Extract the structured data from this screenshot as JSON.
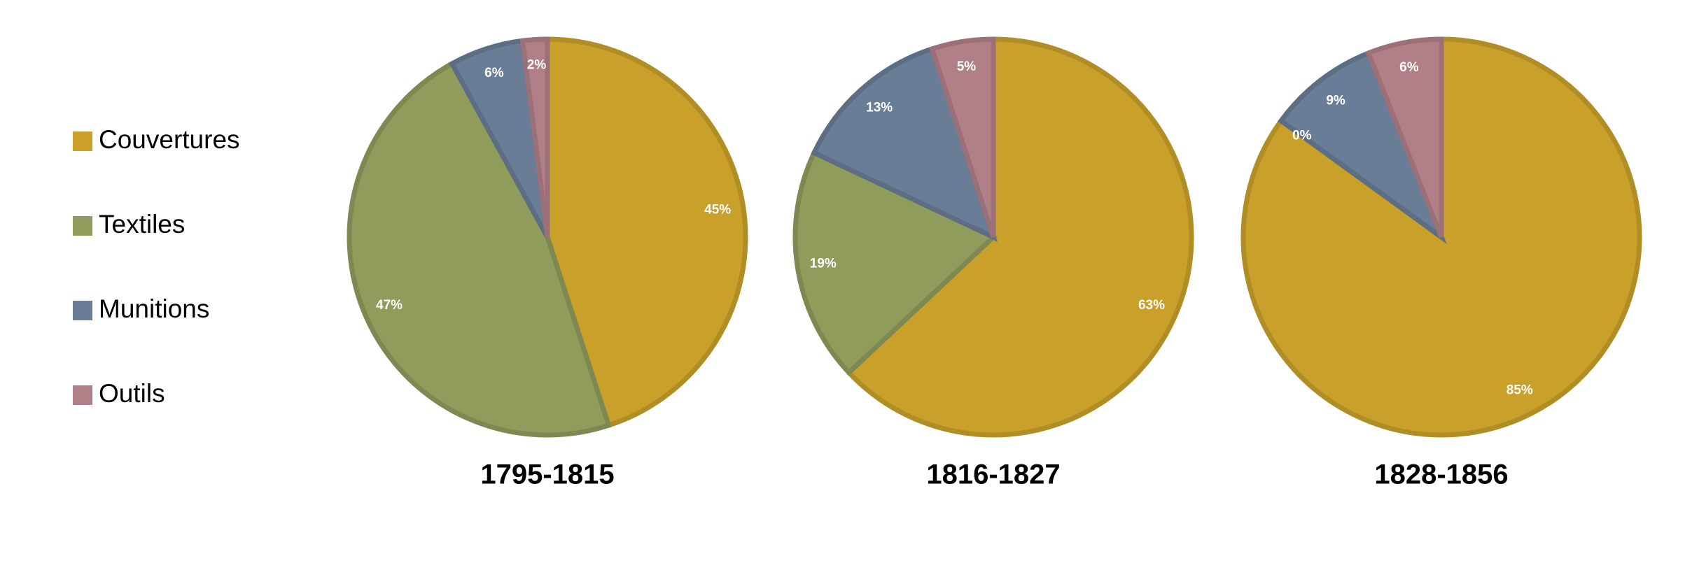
{
  "chart_data": [
    {
      "type": "pie",
      "title": "1795-1815",
      "categories": [
        "Couvertures",
        "Textiles",
        "Munitions",
        "Outils"
      ],
      "values": [
        45,
        47,
        6,
        2
      ],
      "value_labels": [
        "45%",
        "47%",
        "6%",
        "2%"
      ],
      "colors": [
        "#c8a02a",
        "#8f9c5c",
        "#6a7d96",
        "#b07f88"
      ]
    },
    {
      "type": "pie",
      "title": "1816-1827",
      "categories": [
        "Couvertures",
        "Textiles",
        "Munitions",
        "Outils"
      ],
      "values": [
        63,
        19,
        13,
        5
      ],
      "value_labels": [
        "63%",
        "19%",
        "13%",
        "5%"
      ],
      "colors": [
        "#c8a02a",
        "#8f9c5c",
        "#6a7d96",
        "#b07f88"
      ]
    },
    {
      "type": "pie",
      "title": "1828-1856",
      "categories": [
        "Couvertures",
        "Textiles",
        "Munitions",
        "Outils"
      ],
      "values": [
        85,
        0,
        9,
        6
      ],
      "value_labels": [
        "85%",
        "0%",
        "9%",
        "6%"
      ],
      "colors": [
        "#c8a02a",
        "#8f9c5c",
        "#6a7d96",
        "#b07f88"
      ]
    }
  ]
}
